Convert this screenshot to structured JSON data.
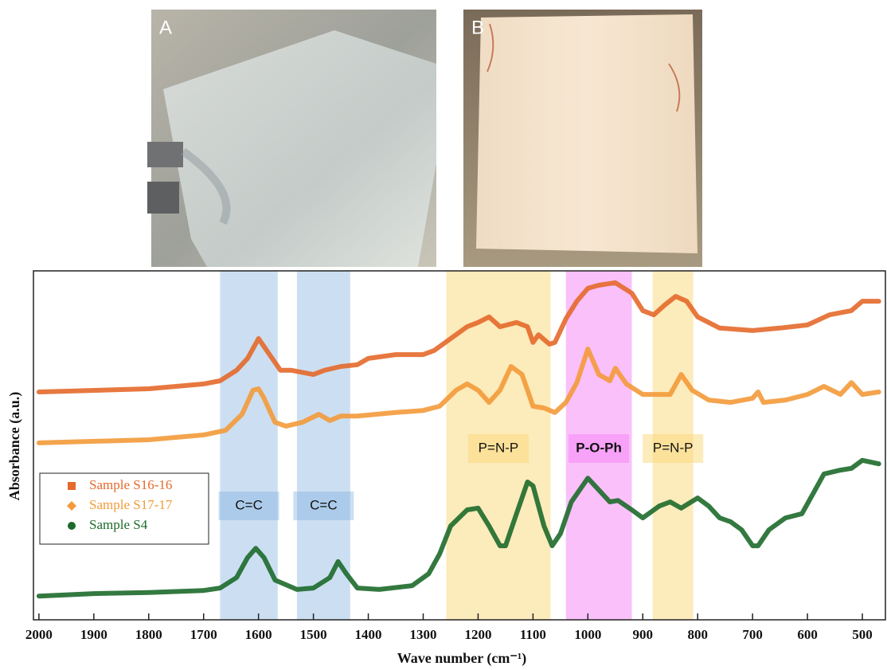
{
  "panels": [
    {
      "label": "A"
    },
    {
      "label": "B"
    }
  ],
  "chart_data": {
    "type": "line",
    "x_label": "Wave number (cm⁻¹)",
    "y_label": "Absorbance (a.u.)",
    "xlim": [
      2010,
      458
    ],
    "ylim": [
      0,
      10
    ],
    "xticks": [
      2000,
      1900,
      1800,
      1700,
      1600,
      1500,
      1400,
      1300,
      1200,
      1100,
      1000,
      900,
      800,
      700,
      600,
      500
    ],
    "bands": [
      {
        "x": [
          1670,
          1565
        ],
        "label": "C=C",
        "color": "rgba(120,170,220,0.38)"
      },
      {
        "x": [
          1530,
          1433
        ],
        "label": "C=C",
        "color": "rgba(120,170,220,0.38)"
      },
      {
        "x": [
          1258,
          1068
        ],
        "label": "P=N-P",
        "color": "rgba(250,215,120,0.5)"
      },
      {
        "x": [
          1040,
          920
        ],
        "label": "P-O-Ph",
        "color": "rgba(245,130,245,0.5)"
      },
      {
        "x": [
          882,
          808
        ],
        "label": "P=N-P",
        "color": "rgba(250,215,120,0.5)"
      }
    ],
    "series": [
      {
        "name": "Sample S16-16",
        "color": "#e4692b",
        "marker": "square",
        "x": [
          2000,
          1800,
          1700,
          1670,
          1640,
          1620,
          1600,
          1580,
          1560,
          1540,
          1500,
          1480,
          1450,
          1420,
          1400,
          1350,
          1300,
          1280,
          1250,
          1220,
          1200,
          1180,
          1160,
          1130,
          1110,
          1100,
          1090,
          1070,
          1060,
          1040,
          1020,
          1000,
          980,
          950,
          920,
          900,
          880,
          860,
          840,
          820,
          800,
          760,
          700,
          650,
          600,
          560,
          520,
          500,
          470
        ],
        "values": [
          6.53,
          6.62,
          6.76,
          6.85,
          7.15,
          7.49,
          8.06,
          7.6,
          7.15,
          7.15,
          7.03,
          7.15,
          7.26,
          7.31,
          7.49,
          7.6,
          7.6,
          7.72,
          8.06,
          8.4,
          8.52,
          8.68,
          8.4,
          8.52,
          8.4,
          7.95,
          8.17,
          7.9,
          7.95,
          8.63,
          9.13,
          9.5,
          9.59,
          9.66,
          9.36,
          8.86,
          8.74,
          9.02,
          9.27,
          9.13,
          8.68,
          8.36,
          8.29,
          8.36,
          8.45,
          8.74,
          8.86,
          9.13,
          9.13
        ]
      },
      {
        "name": "Sample S17-17",
        "color": "#f39a3a",
        "marker": "diamond",
        "x": [
          2000,
          1800,
          1700,
          1660,
          1630,
          1610,
          1600,
          1590,
          1570,
          1550,
          1520,
          1490,
          1470,
          1450,
          1420,
          1350,
          1300,
          1270,
          1240,
          1220,
          1200,
          1180,
          1160,
          1140,
          1120,
          1110,
          1100,
          1080,
          1060,
          1040,
          1020,
          1000,
          980,
          960,
          950,
          930,
          900,
          850,
          830,
          810,
          780,
          740,
          700,
          690,
          680,
          640,
          600,
          570,
          540,
          520,
          500,
          470
        ],
        "values": [
          5.07,
          5.16,
          5.3,
          5.43,
          5.89,
          6.58,
          6.62,
          6.35,
          5.66,
          5.55,
          5.66,
          5.89,
          5.71,
          5.84,
          5.84,
          5.94,
          6.0,
          6.12,
          6.58,
          6.76,
          6.58,
          6.23,
          6.58,
          7.26,
          7.03,
          6.58,
          6.12,
          6.07,
          5.94,
          6.23,
          6.8,
          7.76,
          7.03,
          6.85,
          7.21,
          6.76,
          6.46,
          6.46,
          7.03,
          6.58,
          6.3,
          6.23,
          6.35,
          6.53,
          6.23,
          6.3,
          6.46,
          6.69,
          6.46,
          6.8,
          6.46,
          6.53
        ]
      },
      {
        "name": "Sample S4",
        "color": "#1d6a2b",
        "marker": "circle",
        "x": [
          2000,
          1900,
          1800,
          1700,
          1670,
          1640,
          1620,
          1605,
          1590,
          1570,
          1530,
          1500,
          1470,
          1455,
          1440,
          1420,
          1380,
          1320,
          1290,
          1270,
          1250,
          1220,
          1200,
          1180,
          1160,
          1150,
          1130,
          1110,
          1100,
          1080,
          1065,
          1050,
          1030,
          1000,
          980,
          960,
          945,
          920,
          900,
          870,
          850,
          830,
          800,
          780,
          760,
          740,
          720,
          700,
          690,
          670,
          640,
          610,
          590,
          570,
          540,
          520,
          500,
          470
        ],
        "values": [
          0.68,
          0.75,
          0.78,
          0.84,
          0.91,
          1.21,
          1.78,
          2.05,
          1.78,
          1.14,
          0.87,
          0.91,
          1.21,
          1.67,
          1.32,
          0.91,
          0.87,
          0.98,
          1.32,
          1.89,
          2.69,
          3.15,
          3.2,
          2.69,
          2.12,
          2.12,
          3.04,
          3.95,
          3.84,
          2.69,
          2.12,
          2.47,
          3.38,
          4.06,
          3.72,
          3.38,
          3.42,
          3.15,
          2.92,
          3.26,
          3.38,
          3.2,
          3.49,
          3.26,
          2.92,
          2.81,
          2.58,
          2.12,
          2.12,
          2.58,
          2.92,
          3.04,
          3.61,
          4.18,
          4.29,
          4.34,
          4.57,
          4.47
        ]
      }
    ]
  }
}
